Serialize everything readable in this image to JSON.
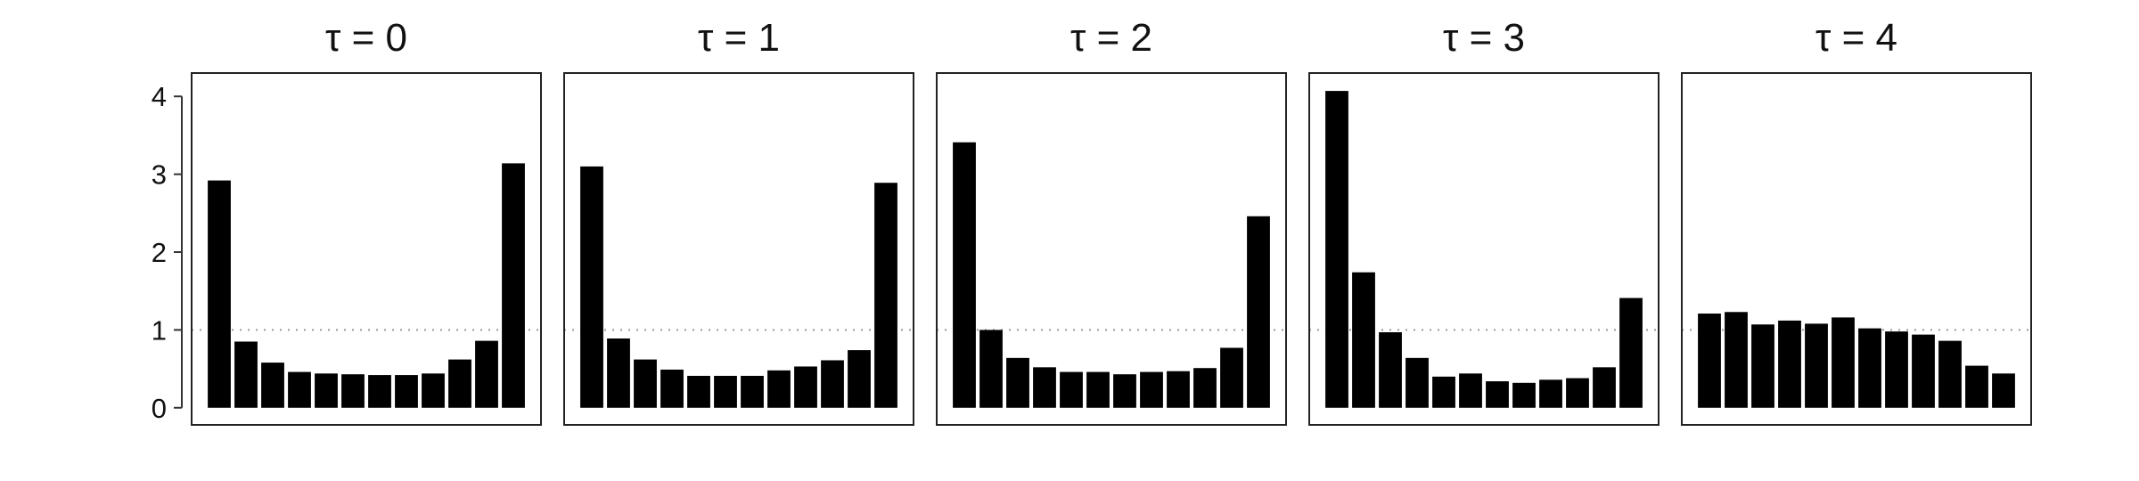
{
  "chart_data": {
    "type": "bar",
    "layout": "small-multiples",
    "panels": [
      {
        "title": "τ = 0",
        "values": [
          2.92,
          0.85,
          0.58,
          0.46,
          0.44,
          0.43,
          0.42,
          0.42,
          0.44,
          0.62,
          0.86,
          3.14
        ]
      },
      {
        "title": "τ = 1",
        "values": [
          3.1,
          0.89,
          0.62,
          0.49,
          0.41,
          0.41,
          0.41,
          0.48,
          0.53,
          0.61,
          0.74,
          2.89
        ]
      },
      {
        "title": "τ = 2",
        "values": [
          3.41,
          1.0,
          0.64,
          0.52,
          0.46,
          0.46,
          0.43,
          0.46,
          0.47,
          0.51,
          0.77,
          2.46
        ]
      },
      {
        "title": "τ = 3",
        "values": [
          4.07,
          1.74,
          0.97,
          0.64,
          0.4,
          0.44,
          0.34,
          0.32,
          0.36,
          0.38,
          0.52,
          1.41
        ]
      },
      {
        "title": "τ = 4",
        "values": [
          1.21,
          1.23,
          1.07,
          1.12,
          1.08,
          1.16,
          1.02,
          0.98,
          0.94,
          0.86,
          0.54,
          0.44
        ]
      }
    ],
    "y_ticks": [
      "0",
      "1",
      "2",
      "3",
      "4"
    ],
    "ylim": [
      -0.22,
      4.3
    ],
    "reference_line": {
      "y": 1,
      "style": "dotted"
    },
    "bar_color": "#000000",
    "grid": false,
    "xlabel": "",
    "ylabel": ""
  }
}
